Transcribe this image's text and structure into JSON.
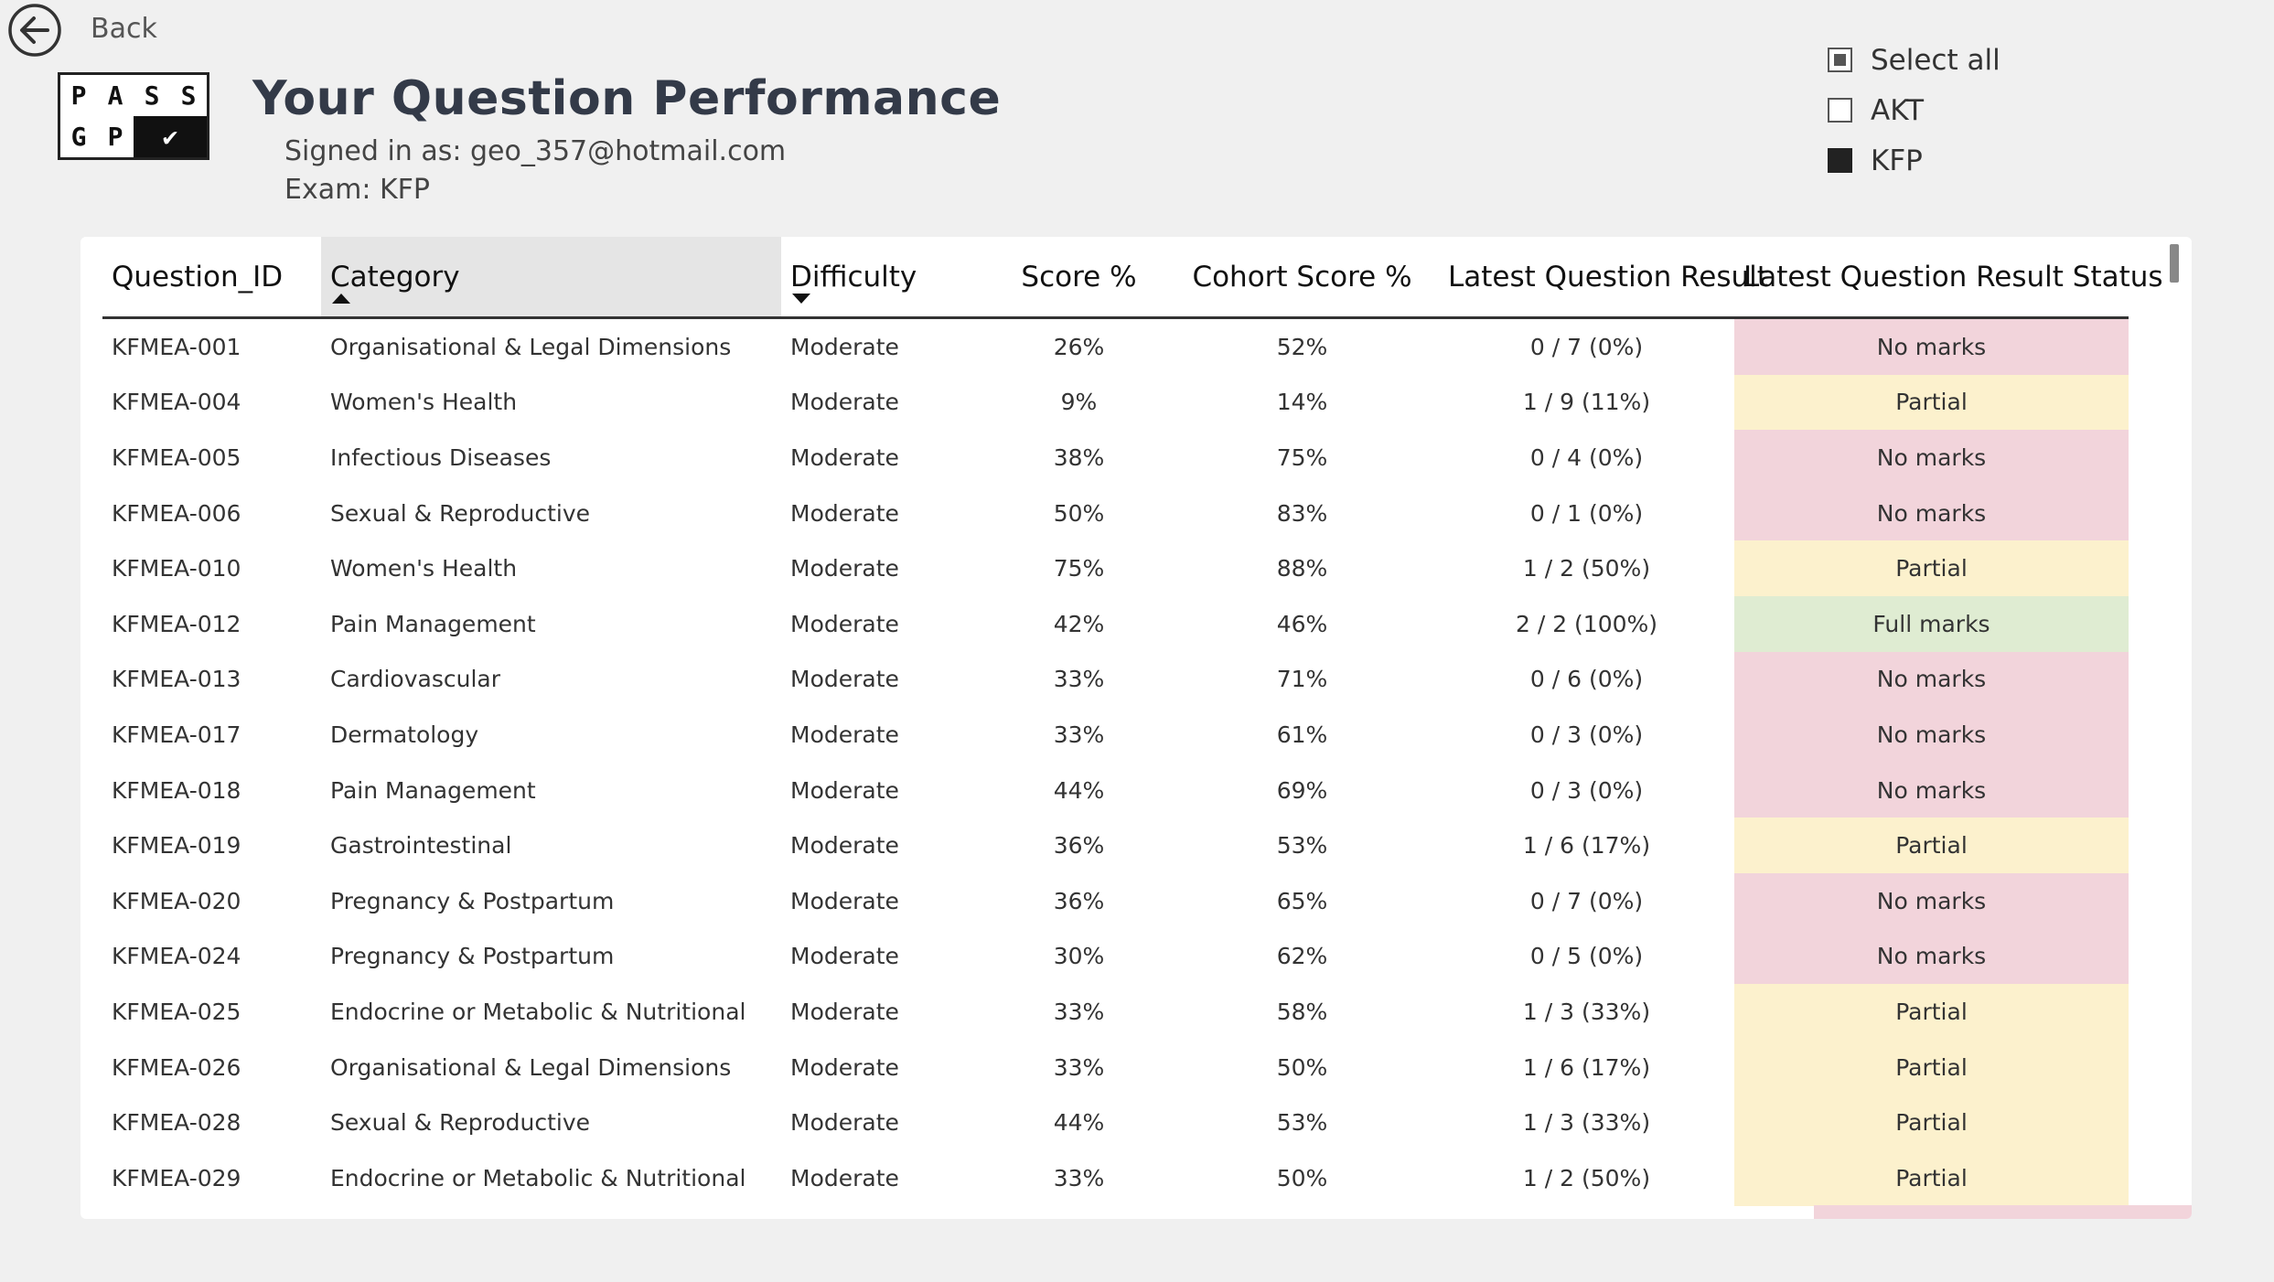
{
  "nav": {
    "back_label": "Back",
    "back_icon": "arrow-left-circle-icon"
  },
  "logo": {
    "row1": [
      "P",
      "A",
      "S",
      "S"
    ],
    "row2": [
      "G",
      "P"
    ],
    "check": "✔"
  },
  "header": {
    "title": "Your Question Performance",
    "signed_in": "Signed in as: geo_357@hotmail.com",
    "exam": "Exam: KFP"
  },
  "filters": [
    {
      "label": "Select all",
      "state": "partial"
    },
    {
      "label": "AKT",
      "state": "unchecked"
    },
    {
      "label": "KFP",
      "state": "checked"
    }
  ],
  "table": {
    "columns": [
      "Question_ID",
      "Category",
      "Difficulty",
      "Score %",
      "Cohort Score %",
      "Latest Question Result",
      "Latest Question Result Status"
    ],
    "sorted_column": "Category",
    "status_colors": {
      "No marks": "#f2d4db",
      "Partial": "#fcf1cd",
      "Full marks": "#dfecd2"
    },
    "rows": [
      [
        "KFMEA-001",
        "Organisational & Legal Dimensions",
        "Moderate",
        "26%",
        "52%",
        "0 / 7 (0%)",
        "No marks"
      ],
      [
        "KFMEA-004",
        "Women's Health",
        "Moderate",
        "9%",
        "14%",
        "1 / 9 (11%)",
        "Partial"
      ],
      [
        "KFMEA-005",
        "Infectious Diseases",
        "Moderate",
        "38%",
        "75%",
        "0 / 4 (0%)",
        "No marks"
      ],
      [
        "KFMEA-006",
        "Sexual & Reproductive",
        "Moderate",
        "50%",
        "83%",
        "0 / 1 (0%)",
        "No marks"
      ],
      [
        "KFMEA-010",
        "Women's Health",
        "Moderate",
        "75%",
        "88%",
        "1 / 2 (50%)",
        "Partial"
      ],
      [
        "KFMEA-012",
        "Pain Management",
        "Moderate",
        "42%",
        "46%",
        "2 / 2 (100%)",
        "Full marks"
      ],
      [
        "KFMEA-013",
        "Cardiovascular",
        "Moderate",
        "33%",
        "71%",
        "0 / 6 (0%)",
        "No marks"
      ],
      [
        "KFMEA-017",
        "Dermatology",
        "Moderate",
        "33%",
        "61%",
        "0 / 3 (0%)",
        "No marks"
      ],
      [
        "KFMEA-018",
        "Pain Management",
        "Moderate",
        "44%",
        "69%",
        "0 / 3 (0%)",
        "No marks"
      ],
      [
        "KFMEA-019",
        "Gastrointestinal",
        "Moderate",
        "36%",
        "53%",
        "1 / 6 (17%)",
        "Partial"
      ],
      [
        "KFMEA-020",
        "Pregnancy & Postpartum",
        "Moderate",
        "36%",
        "65%",
        "0 / 7 (0%)",
        "No marks"
      ],
      [
        "KFMEA-024",
        "Pregnancy & Postpartum",
        "Moderate",
        "30%",
        "62%",
        "0 / 5 (0%)",
        "No marks"
      ],
      [
        "KFMEA-025",
        "Endocrine or Metabolic & Nutritional",
        "Moderate",
        "33%",
        "58%",
        "1 / 3 (33%)",
        "Partial"
      ],
      [
        "KFMEA-026",
        "Organisational & Legal Dimensions",
        "Moderate",
        "33%",
        "50%",
        "1 / 6 (17%)",
        "Partial"
      ],
      [
        "KFMEA-028",
        "Sexual & Reproductive",
        "Moderate",
        "44%",
        "53%",
        "1 / 3 (33%)",
        "Partial"
      ],
      [
        "KFMEA-029",
        "Endocrine or Metabolic & Nutritional",
        "Moderate",
        "33%",
        "50%",
        "1 / 2 (50%)",
        "Partial"
      ]
    ]
  }
}
